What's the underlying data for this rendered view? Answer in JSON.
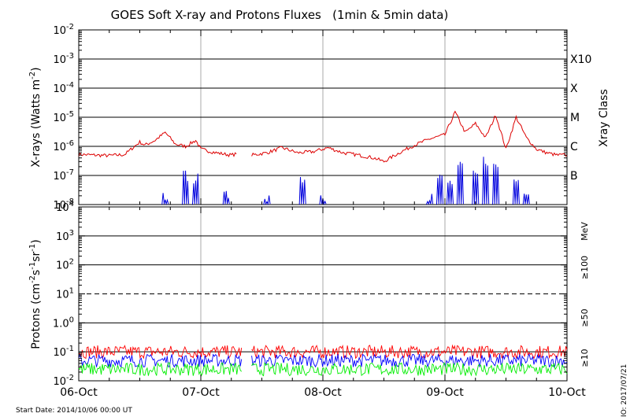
{
  "chart_data": [
    {
      "type": "line",
      "title": "GOES Soft X-ray and Protons Fluxes   (1min & 5min data)",
      "ylabel": "X-rays (Watts m^-2)",
      "ylabel_parts": {
        "base": "X-rays (Watts m",
        "sup": "-2",
        "end": ")"
      },
      "y_scale": "log",
      "ylim": [
        1e-08,
        0.01
      ],
      "y_ticks": [
        {
          "base": "10",
          "exp": "-2"
        },
        {
          "base": "10",
          "exp": "-3"
        },
        {
          "base": "10",
          "exp": "-4"
        },
        {
          "base": "10",
          "exp": "-5"
        },
        {
          "base": "10",
          "exp": "-6"
        },
        {
          "base": "10",
          "exp": "-7"
        },
        {
          "base": "10",
          "exp": "-8"
        }
      ],
      "right_axis_label": "Xray Class",
      "class_labels": [
        {
          "label": "X10",
          "level": 0.001
        },
        {
          "label": "X",
          "level": 0.0001
        },
        {
          "label": "M",
          "level": 1e-05
        },
        {
          "label": "C",
          "level": 1e-06
        },
        {
          "label": "B",
          "level": 1e-07
        }
      ],
      "xlim": [
        "2014-10-06 00:00",
        "2014-10-10 00:00"
      ],
      "grid": true,
      "series": [
        {
          "color": "#dd0000",
          "points": [
            [
              "2014-10-06 00:00",
              5.3e-07
            ],
            [
              "2014-10-06 03:00",
              5e-07
            ],
            [
              "2014-10-06 06:00",
              4.8e-07
            ],
            [
              "2014-10-06 09:00",
              5.2e-07
            ],
            [
              "2014-10-06 12:00",
              1.4e-06
            ],
            [
              "2014-10-06 13:00",
              1.1e-06
            ],
            [
              "2014-10-06 15:00",
              1.6e-06
            ],
            [
              "2014-10-06 17:00",
              3e-06
            ],
            [
              "2014-10-06 19:00",
              1.2e-06
            ],
            [
              "2014-10-06 21:00",
              1e-06
            ],
            [
              "2014-10-06 23:00",
              1.6e-06
            ],
            [
              "2014-10-07 00:00",
              8e-07
            ],
            [
              "2014-10-07 03:00",
              6e-07
            ],
            [
              "2014-10-07 06:00",
              5e-07
            ],
            [
              "2014-10-07 07:00",
              5.5e-07
            ]
          ]
        },
        {
          "color": "#dd0000",
          "points": [
            [
              "2014-10-07 10:00",
              5e-07
            ],
            [
              "2014-10-07 13:00",
              6e-07
            ],
            [
              "2014-10-07 16:00",
              9e-07
            ],
            [
              "2014-10-07 19:00",
              6e-07
            ],
            [
              "2014-10-07 22:00",
              6.5e-07
            ],
            [
              "2014-10-08 01:00",
              9e-07
            ],
            [
              "2014-10-08 04:00",
              6e-07
            ],
            [
              "2014-10-08 07:00",
              5e-07
            ],
            [
              "2014-10-08 10:00",
              4e-07
            ],
            [
              "2014-10-08 12:00",
              3e-07
            ],
            [
              "2014-10-08 15:00",
              6e-07
            ],
            [
              "2014-10-08 18:00",
              1.1e-06
            ],
            [
              "2014-10-08 21:00",
              1.8e-06
            ],
            [
              "2014-10-09 00:00",
              2.5e-06
            ],
            [
              "2014-10-09 02:00",
              1.5e-05
            ],
            [
              "2014-10-09 04:00",
              3e-06
            ],
            [
              "2014-10-09 06:00",
              6e-06
            ],
            [
              "2014-10-09 08:00",
              2e-06
            ],
            [
              "2014-10-09 10:00",
              1.2e-05
            ],
            [
              "2014-10-09 12:00",
              8e-07
            ],
            [
              "2014-10-09 14:00",
              1e-05
            ],
            [
              "2014-10-09 16:00",
              2e-06
            ],
            [
              "2014-10-09 18:00",
              8e-07
            ],
            [
              "2014-10-09 20:00",
              6e-07
            ],
            [
              "2014-10-09 22:00",
              5e-07
            ],
            [
              "2014-10-10 00:00",
              5e-07
            ]
          ]
        },
        {
          "color": "#0000dd",
          "spikes": [
            [
              "2014-10-06 17:00",
              3e-08
            ],
            [
              "2014-10-06 21:00",
              1.5e-07
            ],
            [
              "2014-10-06 23:00",
              1.2e-07
            ],
            [
              "2014-10-07 05:00",
              3e-08
            ],
            [
              "2014-10-07 13:00",
              3e-08
            ],
            [
              "2014-10-07 20:00",
              1.2e-07
            ],
            [
              "2014-10-08 00:00",
              3e-08
            ],
            [
              "2014-10-08 21:00",
              3e-08
            ],
            [
              "2014-10-08 23:00",
              1.2e-07
            ],
            [
              "2014-10-09 01:00",
              8e-08
            ],
            [
              "2014-10-09 03:00",
              3e-07
            ],
            [
              "2014-10-09 06:00",
              1.5e-07
            ],
            [
              "2014-10-09 08:00",
              5e-07
            ],
            [
              "2014-10-09 10:00",
              3e-07
            ],
            [
              "2014-10-09 14:00",
              1e-07
            ],
            [
              "2014-10-09 16:00",
              5e-08
            ]
          ]
        }
      ]
    },
    {
      "type": "line",
      "ylabel_parts": {
        "base": "Protons (cm",
        "sup1": "-2",
        "mid1": "s",
        "sup2": "-1",
        "mid2": "sr",
        "sup3": "-1",
        "end": ")"
      },
      "y_scale": "log",
      "ylim": [
        0.01,
        10000
      ],
      "y_ticks": [
        {
          "base": "10",
          "exp": "4"
        },
        {
          "base": "10",
          "exp": "3"
        },
        {
          "base": "10",
          "exp": "2"
        },
        {
          "base": "10",
          "exp": "1"
        },
        {
          "base": "10",
          "exp": ""
        },
        {
          "base": "1.0",
          "exp": "0"
        },
        {
          "base": "10",
          "exp": "-1"
        },
        {
          "base": "10",
          "exp": "-2"
        }
      ],
      "dashed_threshold": 10,
      "x_ticks": [
        "06-Oct",
        "07-Oct",
        "08-Oct",
        "09-Oct",
        "10-Oct"
      ],
      "gap": [
        "2014-10-07 08:00",
        "2014-10-07 10:00"
      ],
      "unit_label": "MeV",
      "energy_labels": [
        {
          "label": "≥100",
          "color": "#00dd00"
        },
        {
          "label": "≥50",
          "color": "#0000dd"
        },
        {
          "label": "≥10",
          "color": "#dd0000"
        }
      ],
      "series": [
        {
          "name": "≥10",
          "color": "#ff0000",
          "base": 0.1
        },
        {
          "name": "≥50",
          "color": "#0000ff",
          "base": 0.05
        },
        {
          "name": "≥100",
          "color": "#00ee00",
          "base": 0.025
        }
      ]
    }
  ],
  "footer": {
    "start_date": "Start Date: 2014/10/06 00:00 UT",
    "credit": "HELIO: 2017/07/21"
  }
}
